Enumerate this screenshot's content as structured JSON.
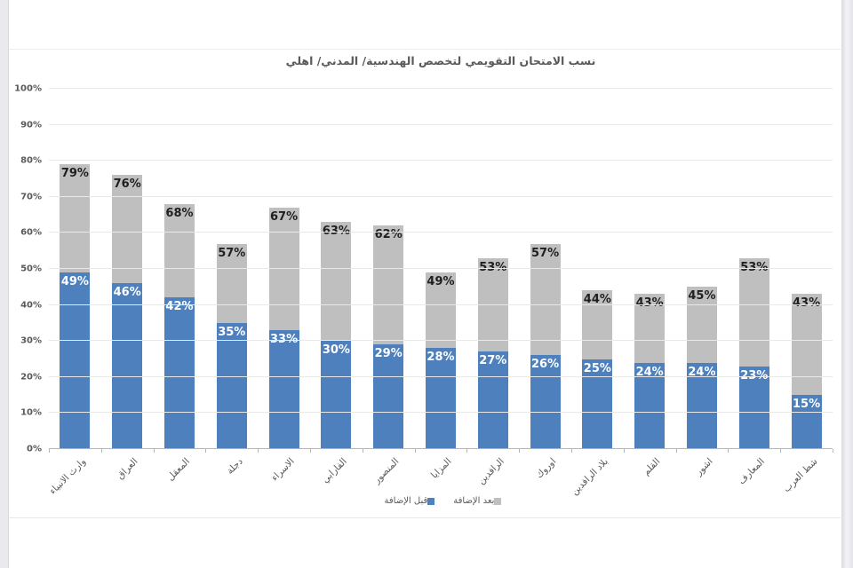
{
  "chart_data": {
    "type": "bar",
    "stacked": true,
    "title": "نسب الامتحان التقويمي لتخصص الهندسية/ المدني/ اهلي",
    "categories": [
      "وارث الانبياء",
      "العراق",
      "المعقل",
      "دجلة",
      "الاسراء",
      "الفارابي",
      "المنصور",
      "المزايا",
      "الرافدين",
      "اوروك",
      "بلاد الرافدين",
      "القلم",
      "اشور",
      "المعارف",
      "شط العرب"
    ],
    "series": [
      {
        "name": "قبل الإضافة",
        "color": "#4d80bd",
        "label_color": "#ffffff",
        "values": [
          49,
          46,
          42,
          35,
          33,
          30,
          29,
          28,
          27,
          26,
          25,
          24,
          24,
          23,
          15
        ]
      },
      {
        "name": "بعد الإضافة",
        "color": "#bfbfbf",
        "label_color": "#1f1f1f",
        "values": [
          79,
          76,
          68,
          57,
          67,
          63,
          62,
          49,
          53,
          57,
          44,
          43,
          45,
          53,
          43
        ]
      }
    ],
    "series_note": "second series values are cumulative totals (bar top = after value)",
    "value_suffix": "%",
    "ylim": [
      0,
      100
    ],
    "ytick_step": 10,
    "ytick_labels": [
      "0%",
      "10%",
      "20%",
      "30%",
      "40%",
      "50%",
      "60%",
      "70%",
      "80%",
      "90%",
      "100%"
    ],
    "grid": true,
    "legend_position": "bottom",
    "xlabel": "",
    "ylabel": ""
  },
  "colors": {
    "title_text": "#595959",
    "axis_text": "#595959",
    "gridline": "#e9e9e9",
    "axis_line": "#aeb7c2"
  }
}
